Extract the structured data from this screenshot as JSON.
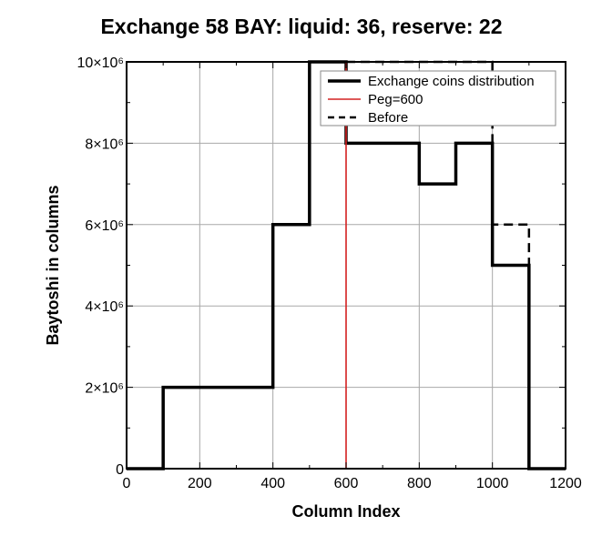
{
  "chart_data": {
    "type": "line",
    "title": "Exchange 58 BAY: liquid: 36, reserve: 22",
    "xlabel": "Column Index",
    "ylabel": "Baytoshi in columns",
    "xlim": [
      0,
      1200
    ],
    "ylim": [
      0,
      10000000
    ],
    "xticks": [
      0,
      200,
      400,
      600,
      800,
      1000,
      1200
    ],
    "xtick_labels": [
      "0",
      "200",
      "400",
      "600",
      "800",
      "1000",
      "1200"
    ],
    "yticks": [
      0,
      2000000,
      4000000,
      6000000,
      8000000,
      10000000
    ],
    "ytick_labels": [
      "0",
      "2×10⁶",
      "4×10⁶",
      "6×10⁶",
      "8×10⁶",
      "10×10⁶"
    ],
    "grid": true,
    "legend_position": "top-right",
    "series": [
      {
        "name": "Exchange coins distribution",
        "style": "solid",
        "color": "#000000",
        "step_edges": [
          0,
          100,
          200,
          300,
          400,
          500,
          600,
          700,
          800,
          900,
          1000,
          1100,
          1200
        ],
        "values": [
          0,
          2000000,
          2000000,
          2000000,
          6000000,
          10000000,
          8000000,
          8000000,
          7000000,
          8000000,
          5000000,
          0
        ]
      },
      {
        "name": "Before",
        "style": "dashed",
        "color": "#000000",
        "step_edges": [
          0,
          100,
          200,
          300,
          400,
          500,
          600,
          700,
          800,
          900,
          1000,
          1100,
          1200
        ],
        "values": [
          0,
          2000000,
          2000000,
          2000000,
          6000000,
          10000000,
          10000000,
          10000000,
          10000000,
          10000000,
          6000000,
          0
        ]
      }
    ],
    "vertical_lines": [
      {
        "name": "Peg=600",
        "x": 600,
        "color": "#d42020"
      }
    ]
  }
}
